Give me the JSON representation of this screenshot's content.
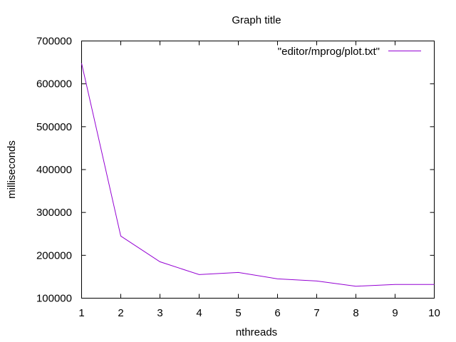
{
  "chart_data": {
    "type": "line",
    "title": "Graph title",
    "xlabel": "nthreads",
    "ylabel": "milliseconds",
    "xlim": [
      1,
      10
    ],
    "ylim": [
      100000,
      700000
    ],
    "x_ticks": [
      1,
      2,
      3,
      4,
      5,
      6,
      7,
      8,
      9,
      10
    ],
    "y_ticks": [
      100000,
      200000,
      300000,
      400000,
      500000,
      600000,
      700000
    ],
    "x_tick_labels": [
      "1",
      "2",
      "3",
      "4",
      "5",
      "6",
      "7",
      "8",
      "9",
      "10"
    ],
    "y_tick_labels": [
      "100000",
      "200000",
      "300000",
      "400000",
      "500000",
      "600000",
      "700000"
    ],
    "grid": false,
    "legend_position": "top-right",
    "series": [
      {
        "name": "\"editor/mprog/plot.txt\"",
        "color": "#9400d3",
        "x": [
          1,
          2,
          3,
          4,
          5,
          6,
          7,
          8,
          9,
          10
        ],
        "values": [
          648000,
          245000,
          185000,
          155000,
          160000,
          145000,
          140000,
          128000,
          132000,
          132000
        ]
      }
    ]
  }
}
